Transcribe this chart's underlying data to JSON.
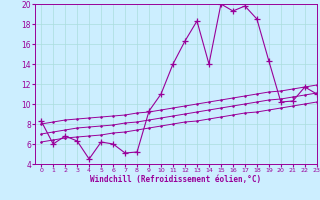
{
  "xlabel": "Windchill (Refroidissement éolien,°C)",
  "bg_color": "#cceeff",
  "grid_color": "#aadddd",
  "line_color": "#990099",
  "x": [
    0,
    1,
    2,
    3,
    4,
    5,
    6,
    7,
    8,
    9,
    10,
    11,
    12,
    13,
    14,
    15,
    16,
    17,
    18,
    19,
    20,
    21,
    22,
    23
  ],
  "y_main": [
    8.3,
    6.0,
    6.8,
    6.3,
    4.5,
    6.2,
    6.0,
    5.1,
    5.2,
    9.3,
    11.0,
    14.0,
    16.3,
    18.3,
    14.0,
    20.0,
    19.3,
    19.8,
    18.5,
    14.3,
    10.2,
    10.3,
    11.7,
    11.0
  ],
  "y_line1": [
    8.0,
    8.2,
    8.4,
    8.5,
    8.6,
    8.7,
    8.8,
    8.9,
    9.1,
    9.2,
    9.4,
    9.6,
    9.8,
    10.0,
    10.2,
    10.4,
    10.6,
    10.8,
    11.0,
    11.2,
    11.3,
    11.5,
    11.7,
    11.9
  ],
  "y_line2": [
    7.0,
    7.2,
    7.4,
    7.6,
    7.7,
    7.8,
    7.9,
    8.1,
    8.2,
    8.4,
    8.6,
    8.8,
    9.0,
    9.2,
    9.4,
    9.6,
    9.8,
    10.0,
    10.2,
    10.4,
    10.5,
    10.7,
    10.9,
    11.1
  ],
  "y_line3": [
    6.2,
    6.4,
    6.6,
    6.7,
    6.8,
    6.9,
    7.1,
    7.2,
    7.4,
    7.6,
    7.8,
    8.0,
    8.2,
    8.3,
    8.5,
    8.7,
    8.9,
    9.1,
    9.2,
    9.4,
    9.6,
    9.8,
    10.0,
    10.2
  ],
  "ylim": [
    4,
    20
  ],
  "xlim": [
    -0.5,
    23
  ],
  "yticks": [
    4,
    6,
    8,
    10,
    12,
    14,
    16,
    18,
    20
  ],
  "xticks": [
    0,
    1,
    2,
    3,
    4,
    5,
    6,
    7,
    8,
    9,
    10,
    11,
    12,
    13,
    14,
    15,
    16,
    17,
    18,
    19,
    20,
    21,
    22,
    23
  ]
}
